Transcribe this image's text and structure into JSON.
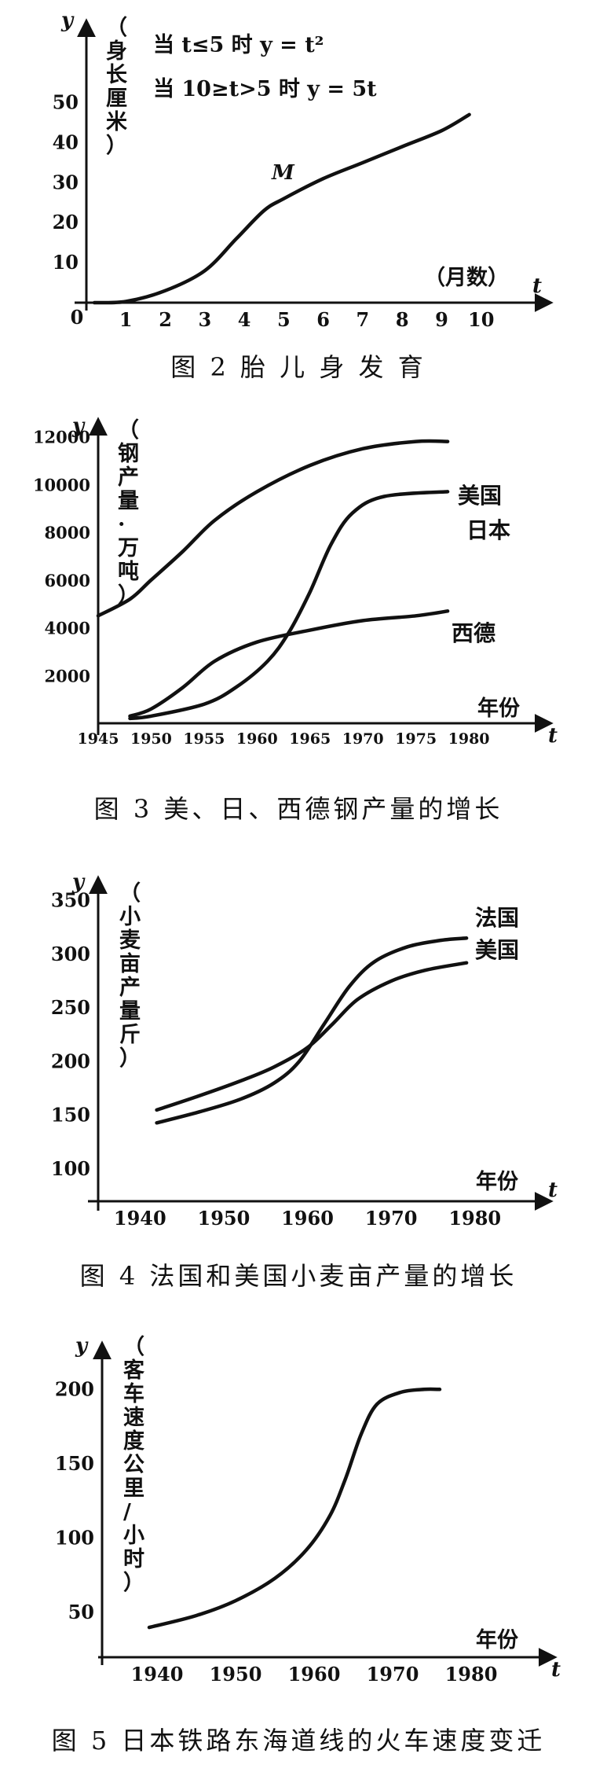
{
  "chart_data": [
    {
      "type": "line",
      "title": "",
      "caption": "图 2   胎 儿 身 发 育",
      "xlabel": "（月数）",
      "ylabel": "（身长厘米）",
      "x_var": "t",
      "y_var": "y",
      "origin_label": "0",
      "xlim": [
        0,
        11
      ],
      "ylim": [
        0,
        56
      ],
      "x_ticks": [
        1,
        2,
        3,
        4,
        5,
        6,
        7,
        8,
        9,
        10
      ],
      "y_ticks": [
        10,
        20,
        30,
        40,
        50
      ],
      "annotations": [
        "当 t≤5 时   y = t²",
        "当 10≥t>5 时   y = 5t"
      ],
      "point_label": "M",
      "series": [
        {
          "name": "",
          "points": [
            [
              0.2,
              0
            ],
            [
              1,
              0.3
            ],
            [
              2,
              3
            ],
            [
              3,
              8
            ],
            [
              3.8,
              16
            ],
            [
              4.5,
              23
            ],
            [
              5,
              26
            ],
            [
              6,
              31
            ],
            [
              7,
              35
            ],
            [
              8,
              39
            ],
            [
              9,
              43
            ],
            [
              9.7,
              47
            ]
          ]
        }
      ]
    },
    {
      "type": "line",
      "title": "",
      "caption": "图 3   美、日、西德钢产量的增长",
      "xlabel": "年份",
      "ylabel": "（钢产量·万吨）",
      "x_var": "t",
      "y_var": "y",
      "xlim": [
        1945,
        1986
      ],
      "ylim": [
        0,
        13500
      ],
      "x_ticks": [
        1945,
        1950,
        1955,
        1960,
        1965,
        1970,
        1975,
        1980
      ],
      "y_ticks": [
        2000,
        4000,
        6000,
        8000,
        10000,
        12000
      ],
      "series": [
        {
          "name": "美国",
          "points": [
            [
              1945,
              4500
            ],
            [
              1948,
              5200
            ],
            [
              1950,
              6000
            ],
            [
              1953,
              7200
            ],
            [
              1956,
              8500
            ],
            [
              1960,
              9700
            ],
            [
              1965,
              10800
            ],
            [
              1970,
              11500
            ],
            [
              1975,
              11800
            ],
            [
              1978,
              11800
            ]
          ]
        },
        {
          "name": "日本",
          "points": [
            [
              1948,
              200
            ],
            [
              1950,
              300
            ],
            [
              1955,
              800
            ],
            [
              1958,
              1500
            ],
            [
              1961,
              2600
            ],
            [
              1963,
              3800
            ],
            [
              1965,
              5500
            ],
            [
              1967,
              7500
            ],
            [
              1969,
              8800
            ],
            [
              1972,
              9500
            ],
            [
              1978,
              9700
            ]
          ]
        },
        {
          "name": "西德",
          "points": [
            [
              1948,
              300
            ],
            [
              1950,
              600
            ],
            [
              1953,
              1500
            ],
            [
              1956,
              2600
            ],
            [
              1960,
              3400
            ],
            [
              1965,
              3900
            ],
            [
              1970,
              4300
            ],
            [
              1975,
              4500
            ],
            [
              1978,
              4700
            ]
          ]
        }
      ]
    },
    {
      "type": "line",
      "title": "",
      "caption": "图 4   法国和美国小麦亩产量的增长",
      "xlabel": "年份",
      "ylabel": "（小麦亩产量斤）",
      "x_var": "t",
      "y_var": "y",
      "xlim": [
        1935,
        1988
      ],
      "ylim": [
        70,
        365
      ],
      "x_ticks": [
        1940,
        1950,
        1960,
        1970,
        1980
      ],
      "y_ticks": [
        100,
        150,
        200,
        250,
        300,
        350
      ],
      "series": [
        {
          "name": "法国",
          "points": [
            [
              1942,
              143
            ],
            [
              1947,
              153
            ],
            [
              1952,
              165
            ],
            [
              1956,
              180
            ],
            [
              1959,
              200
            ],
            [
              1962,
              235
            ],
            [
              1965,
              270
            ],
            [
              1968,
              293
            ],
            [
              1972,
              307
            ],
            [
              1976,
              313
            ],
            [
              1979,
              315
            ]
          ]
        },
        {
          "name": "美国",
          "points": [
            [
              1942,
              155
            ],
            [
              1947,
              168
            ],
            [
              1952,
              182
            ],
            [
              1956,
              195
            ],
            [
              1960,
              213
            ],
            [
              1963,
              235
            ],
            [
              1966,
              258
            ],
            [
              1970,
              275
            ],
            [
              1974,
              285
            ],
            [
              1979,
              292
            ]
          ]
        }
      ]
    },
    {
      "type": "line",
      "title": "",
      "caption": "图 5   日本铁路东海道线的火车速度变迁",
      "xlabel": "年份",
      "ylabel": "（客车速度公里/小时）",
      "x_var": "t",
      "y_var": "y",
      "xlim": [
        1933,
        1989
      ],
      "ylim": [
        20,
        225
      ],
      "x_ticks": [
        1940,
        1950,
        1960,
        1970,
        1980
      ],
      "y_ticks": [
        50,
        100,
        150,
        200
      ],
      "series": [
        {
          "name": "",
          "points": [
            [
              1939,
              40
            ],
            [
              1945,
              48
            ],
            [
              1950,
              58
            ],
            [
              1955,
              73
            ],
            [
              1959,
              92
            ],
            [
              1962,
              115
            ],
            [
              1964,
              140
            ],
            [
              1966,
              170
            ],
            [
              1968,
              190
            ],
            [
              1971,
              198
            ],
            [
              1974,
              200
            ],
            [
              1976,
              200
            ]
          ]
        }
      ]
    }
  ]
}
